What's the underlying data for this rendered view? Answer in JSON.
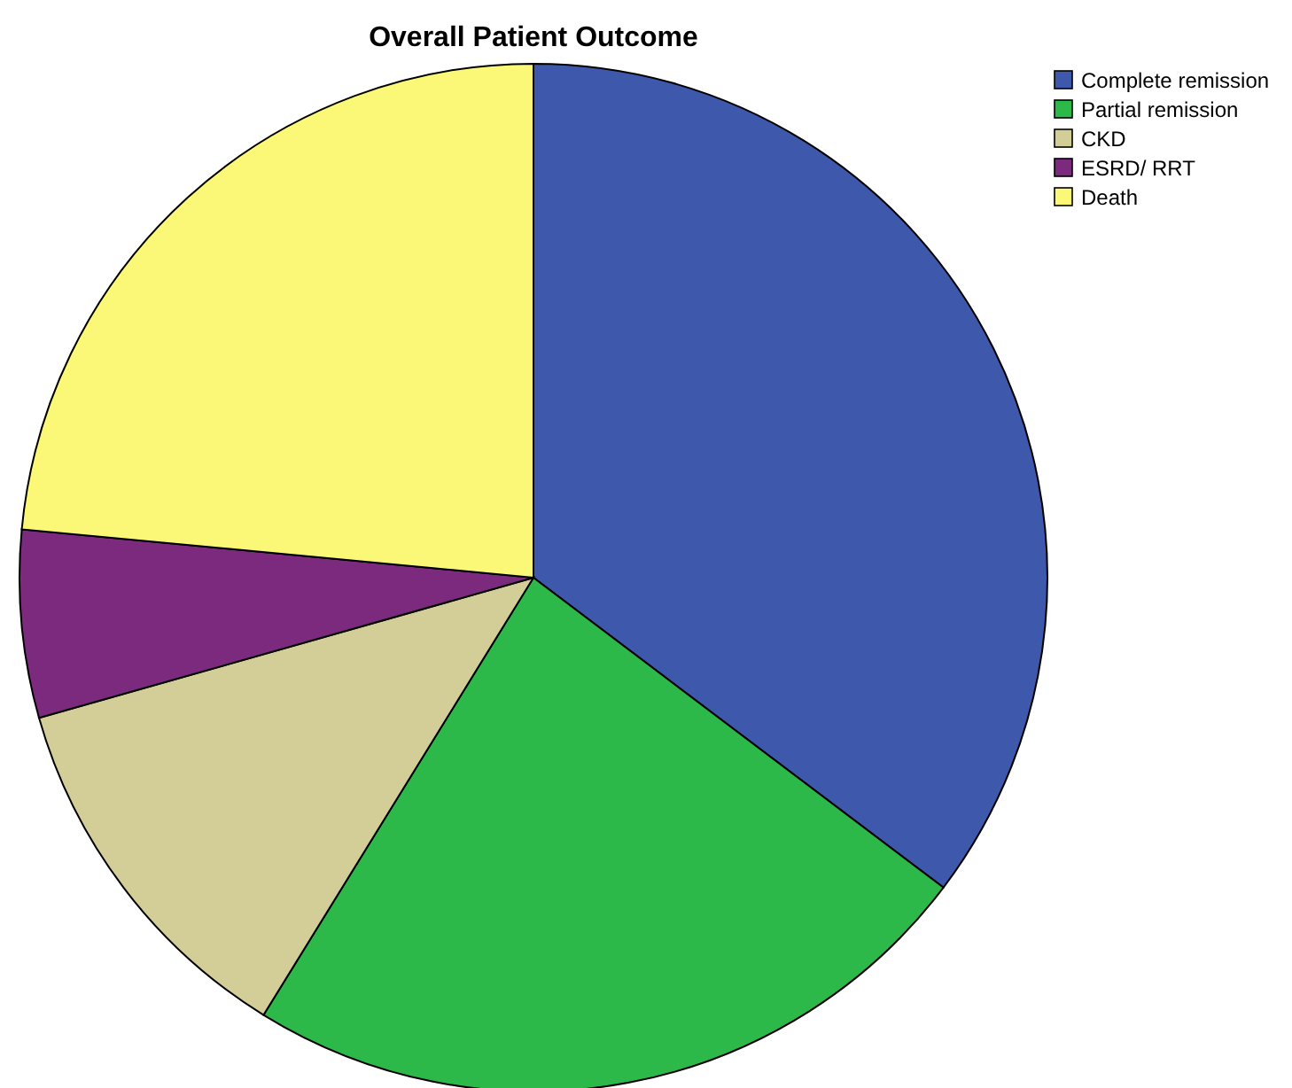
{
  "chart_data": {
    "type": "pie",
    "title": "Overall Patient Outcome",
    "categories": [
      "Complete remission",
      "Partial remission",
      "CKD",
      "ESRD/ RRT",
      "Death"
    ],
    "values": [
      35.3,
      23.5,
      11.8,
      5.9,
      23.5
    ],
    "colors": [
      "#3e58ac",
      "#2db84a",
      "#d3ce97",
      "#7b2a7d",
      "#fbf877"
    ],
    "legend": "top right"
  }
}
